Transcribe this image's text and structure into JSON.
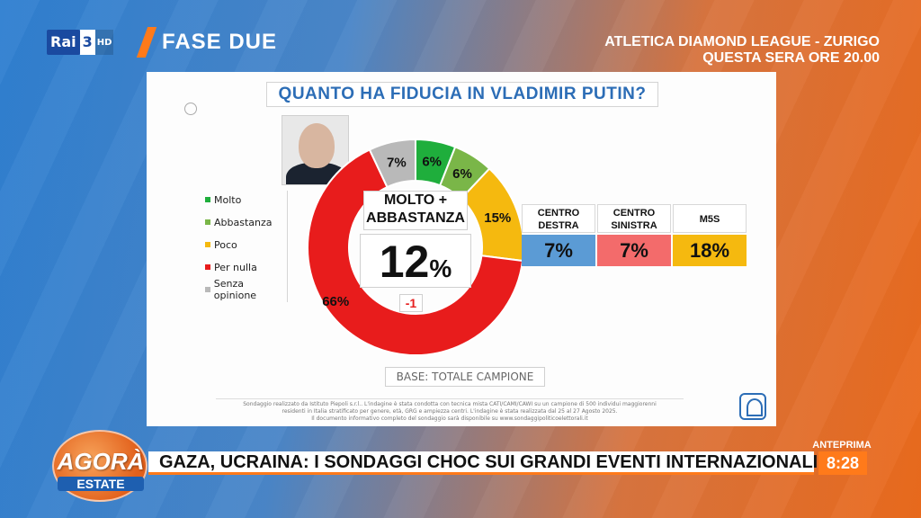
{
  "header": {
    "channel_logo_main": "Rai",
    "channel_logo_num": "3",
    "channel_logo_hd": "HD",
    "program": "FASE DUE",
    "promo_line1": "ATLETICA DIAMOND LEAGUE - ZURIGO",
    "promo_line2": "QUESTA SERA ORE 20.00"
  },
  "card": {
    "title": "QUANTO HA FIDUCIA IN VLADIMIR PUTIN?",
    "center_label_line1": "MOLTO +",
    "center_label_line2": "ABBASTANZA",
    "center_value": "12",
    "center_value_unit": "%",
    "center_delta": "-1",
    "base": "BASE: TOTALE CAMPIONE",
    "note_line1": "Sondaggio realizzato da Istituto Piepoli s.r.l.. L'indagine è stata condotta con tecnica mista CATI/CAMI/CAWI su un campione di 500 individui maggiorenni",
    "note_line2": "residenti in Italia stratificato per genere, età, GRG e ampiezza centri. L'indagine è stata realizzata dal 25 al 27 Agosto 2025.",
    "note_line3": "Il documento informativo completo del sondaggio sarà disponibile su www.sondaggipoliticoelettorali.it"
  },
  "chart_data": [
    {
      "type": "pie",
      "categories": [
        "Molto",
        "Abbastanza",
        "Poco",
        "Per nulla",
        "Senza opinione"
      ],
      "values": [
        6,
        6,
        15,
        66,
        7
      ],
      "labels": [
        "6%",
        "6%",
        "15%",
        "66%",
        "7%"
      ],
      "colors": [
        "#1fae3c",
        "#7ab648",
        "#f5b90f",
        "#e81c1c",
        "#b9b9b9"
      ],
      "legend_position": "left"
    },
    {
      "type": "table",
      "categories": [
        "CENTRO DESTRA",
        "CENTRO SINISTRA",
        "M5S"
      ],
      "category_lines": [
        [
          "CENTRO",
          "DESTRA"
        ],
        [
          "CENTRO",
          "SINISTRA"
        ],
        [
          "M5S"
        ]
      ],
      "values": [
        7,
        7,
        18
      ],
      "labels": [
        "7%",
        "7%",
        "18%"
      ],
      "colors": [
        "#5b9bd5",
        "#f36b6b",
        "#f5b90f"
      ]
    }
  ],
  "ticker": {
    "brand_title": "AGORÀ",
    "brand_sub": "ESTATE",
    "headline": "GAZA, UCRAINA: I SONDAGGI CHOC SUI GRANDI EVENTI INTERNAZIONALI",
    "next_label": "ANTEPRIMA",
    "time": "8:28"
  }
}
